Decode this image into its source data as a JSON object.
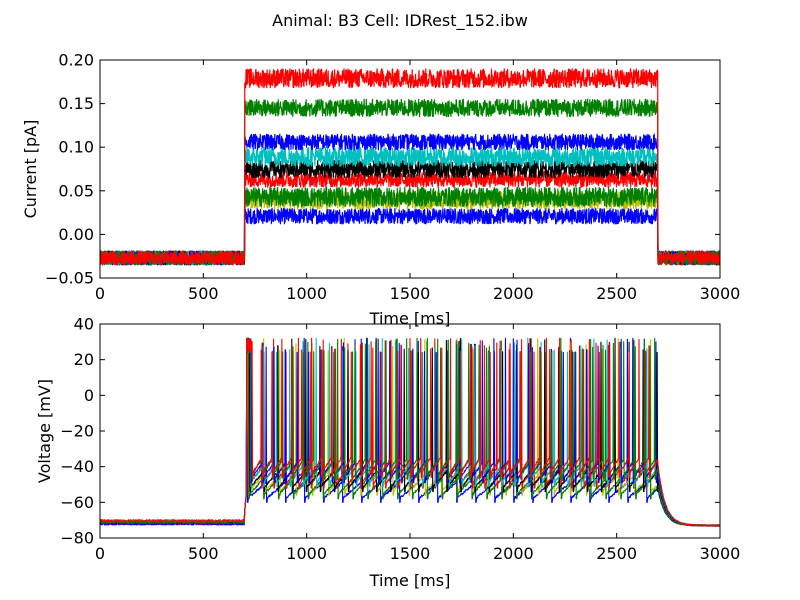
{
  "figure": {
    "title": "Animal: B3 Cell: IDRest_152.ibw"
  },
  "chart_data": [
    {
      "type": "line",
      "id": "current",
      "title": "",
      "xlabel": "Time [ms]",
      "ylabel": "Current [pA]",
      "xlim": [
        0,
        3000
      ],
      "ylim": [
        -0.05,
        0.2
      ],
      "xticks": [
        "0",
        "500",
        "1000",
        "1500",
        "2000",
        "2500",
        "3000"
      ],
      "yticks": [
        "−0.05",
        "0.00",
        "0.05",
        "0.10",
        "0.15",
        "0.20"
      ],
      "stimulus_on_ms": 700,
      "stimulus_off_ms": 2700,
      "baseline_pA": -0.027,
      "series": [
        {
          "color": "#0000ff",
          "step_pA": 0.021
        },
        {
          "color": "#bfbf00",
          "step_pA": 0.039
        },
        {
          "color": "#008000",
          "step_pA": 0.043
        },
        {
          "color": "#ff0000",
          "step_pA": 0.063
        },
        {
          "color": "#000000",
          "step_pA": 0.075
        },
        {
          "color": "#00bfbf",
          "step_pA": 0.089
        },
        {
          "color": "#0000ff",
          "step_pA": 0.106
        },
        {
          "color": "#008000",
          "step_pA": 0.145
        },
        {
          "color": "#ff0000",
          "step_pA": 0.179
        }
      ]
    },
    {
      "type": "line",
      "id": "voltage",
      "title": "",
      "xlabel": "Time [ms]",
      "ylabel": "Voltage [mV]",
      "xlim": [
        0,
        3000
      ],
      "ylim": [
        -80,
        40
      ],
      "xticks": [
        "0",
        "500",
        "1000",
        "1500",
        "2000",
        "2500",
        "3000"
      ],
      "yticks": [
        "−80",
        "−60",
        "−40",
        "−20",
        "0",
        "20",
        "40"
      ],
      "stimulus_on_ms": 700,
      "stimulus_off_ms": 2700,
      "resting_mV": -72,
      "spike_peak_mV": 28,
      "series": [
        {
          "color": "#0000ff",
          "trough_mV": -58,
          "spike_rate_hz": 11
        },
        {
          "color": "#bfbf00",
          "trough_mV": -54,
          "spike_rate_hz": 13
        },
        {
          "color": "#008000",
          "trough_mV": -56,
          "spike_rate_hz": 14
        },
        {
          "color": "#ff0000",
          "trough_mV": -50,
          "spike_rate_hz": 17
        },
        {
          "color": "#000000",
          "trough_mV": -52,
          "spike_rate_hz": 15
        },
        {
          "color": "#00bfbf",
          "trough_mV": -49,
          "spike_rate_hz": 16
        },
        {
          "color": "#0000ff",
          "trough_mV": -47,
          "spike_rate_hz": 18
        },
        {
          "color": "#008000",
          "trough_mV": -45,
          "spike_rate_hz": 20
        },
        {
          "color": "#ff0000",
          "trough_mV": -44,
          "spike_rate_hz": 21
        }
      ]
    }
  ]
}
